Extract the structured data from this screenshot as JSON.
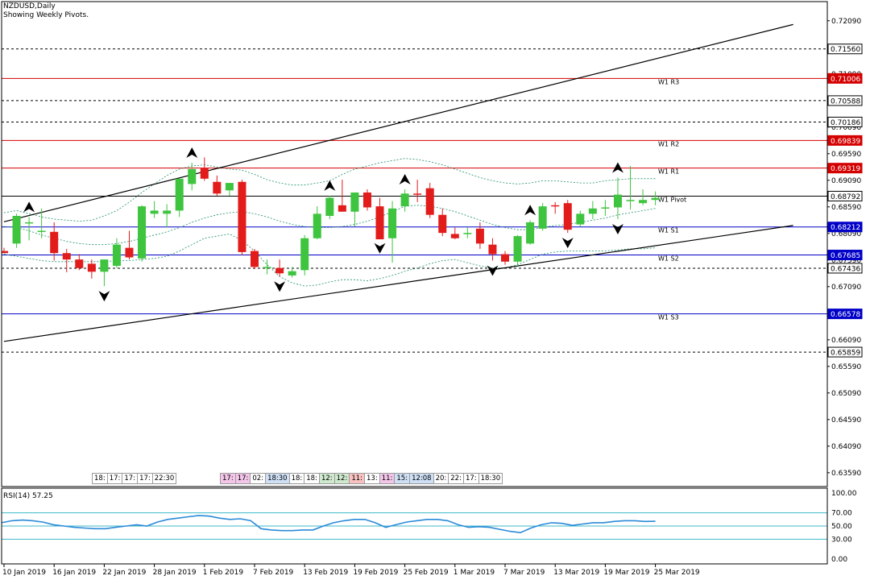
{
  "header": {
    "symbol": "NZDUSD,Daily",
    "subtitle": "Showing Weekly Pivots."
  },
  "rsi": {
    "label": "RSI(14) 57.25",
    "ticks": [
      "100.00",
      "70.00",
      "50.00",
      "30.00",
      "0.00"
    ]
  },
  "time_tags_left": [
    {
      "t": "18:",
      "c": ""
    },
    {
      "t": "17:",
      "c": ""
    },
    {
      "t": "17:",
      "c": ""
    },
    {
      "t": "17:",
      "c": ""
    },
    {
      "t": "22:30",
      "c": ""
    }
  ],
  "time_tags_mid": [
    {
      "t": "17:",
      "c": "p"
    },
    {
      "t": "17:",
      "c": "p"
    },
    {
      "t": "02:",
      "c": ""
    },
    {
      "t": "18:30",
      "c": "b"
    },
    {
      "t": "18:",
      "c": ""
    },
    {
      "t": "18:",
      "c": ""
    },
    {
      "t": "12:",
      "c": "g"
    },
    {
      "t": "12:",
      "c": "g"
    },
    {
      "t": "11:",
      "c": "r"
    },
    {
      "t": "13:",
      "c": ""
    },
    {
      "t": "11:",
      "c": "p"
    },
    {
      "t": "15:",
      "c": "b"
    },
    {
      "t": "12:08",
      "c": "b"
    },
    {
      "t": "20:",
      "c": ""
    },
    {
      "t": "22:",
      "c": ""
    },
    {
      "t": "17:",
      "c": ""
    },
    {
      "t": "18:30",
      "c": ""
    }
  ],
  "colors": {
    "bull": "#3ec43e",
    "bear": "#e21b1b",
    "pivot_red": "#d40000",
    "pivot_blue": "#0000c8",
    "band": "#1f8f6a",
    "rsi": "#2a8ad8",
    "rsi_level": "#3cb9c8"
  },
  "chart_data": {
    "type": "candlestick",
    "title": "NZDUSD,Daily",
    "ylim": [
      0.6333,
      0.7245
    ],
    "y_ticks": [
      "0.72090",
      "0.71590",
      "0.71090",
      "0.70590",
      "0.70090",
      "0.69590",
      "0.69090",
      "0.68590",
      "0.68090",
      "0.67590",
      "0.67090",
      "0.66590",
      "0.66090",
      "0.65590",
      "0.65090",
      "0.64590",
      "0.64090",
      "0.63590"
    ],
    "x_labels": [
      "10 Jan 2019",
      "16 Jan 2019",
      "22 Jan 2019",
      "28 Jan 2019",
      "1 Feb 2019",
      "7 Feb 2019",
      "13 Feb 2019",
      "19 Feb 2019",
      "25 Feb 2019",
      "1 Mar 2019",
      "7 Mar 2019",
      "13 Mar 2019",
      "19 Mar 2019",
      "25 Mar 2019"
    ],
    "x_label_index": [
      0,
      4,
      8,
      12,
      16,
      20,
      24,
      28,
      32,
      36,
      40,
      44,
      48,
      52
    ],
    "candles": [
      {
        "o": 0.6776,
        "h": 0.6782,
        "l": 0.6772,
        "c": 0.6772
      },
      {
        "o": 0.679,
        "h": 0.6846,
        "l": 0.6782,
        "c": 0.6842
      },
      {
        "o": 0.683,
        "h": 0.684,
        "l": 0.6796,
        "c": 0.683
      },
      {
        "o": 0.6812,
        "h": 0.6856,
        "l": 0.68,
        "c": 0.6814
      },
      {
        "o": 0.6812,
        "h": 0.683,
        "l": 0.6758,
        "c": 0.6772
      },
      {
        "o": 0.6772,
        "h": 0.678,
        "l": 0.6736,
        "c": 0.676
      },
      {
        "o": 0.676,
        "h": 0.677,
        "l": 0.674,
        "c": 0.6744
      },
      {
        "o": 0.6752,
        "h": 0.676,
        "l": 0.6724,
        "c": 0.6737
      },
      {
        "o": 0.6737,
        "h": 0.676,
        "l": 0.671,
        "c": 0.676
      },
      {
        "o": 0.6748,
        "h": 0.68,
        "l": 0.6744,
        "c": 0.6788
      },
      {
        "o": 0.6782,
        "h": 0.6814,
        "l": 0.676,
        "c": 0.6764
      },
      {
        "o": 0.6762,
        "h": 0.6862,
        "l": 0.6756,
        "c": 0.686
      },
      {
        "o": 0.6846,
        "h": 0.687,
        "l": 0.6838,
        "c": 0.6852
      },
      {
        "o": 0.6846,
        "h": 0.6864,
        "l": 0.682,
        "c": 0.6852
      },
      {
        "o": 0.6852,
        "h": 0.691,
        "l": 0.684,
        "c": 0.6912
      },
      {
        "o": 0.6902,
        "h": 0.6942,
        "l": 0.689,
        "c": 0.693
      },
      {
        "o": 0.6932,
        "h": 0.6952,
        "l": 0.6908,
        "c": 0.6912
      },
      {
        "o": 0.6906,
        "h": 0.6918,
        "l": 0.688,
        "c": 0.6884
      },
      {
        "o": 0.689,
        "h": 0.6904,
        "l": 0.688,
        "c": 0.6904
      },
      {
        "o": 0.6906,
        "h": 0.691,
        "l": 0.6768,
        "c": 0.6774
      },
      {
        "o": 0.6776,
        "h": 0.678,
        "l": 0.6742,
        "c": 0.6746
      },
      {
        "o": 0.6744,
        "h": 0.676,
        "l": 0.6732,
        "c": 0.6746
      },
      {
        "o": 0.6744,
        "h": 0.676,
        "l": 0.6728,
        "c": 0.6734
      },
      {
        "o": 0.673,
        "h": 0.6746,
        "l": 0.6726,
        "c": 0.6738
      },
      {
        "o": 0.674,
        "h": 0.6806,
        "l": 0.673,
        "c": 0.68
      },
      {
        "o": 0.68,
        "h": 0.686,
        "l": 0.6798,
        "c": 0.6846
      },
      {
        "o": 0.6842,
        "h": 0.688,
        "l": 0.6836,
        "c": 0.6876
      },
      {
        "o": 0.6862,
        "h": 0.691,
        "l": 0.685,
        "c": 0.685
      },
      {
        "o": 0.685,
        "h": 0.6886,
        "l": 0.6822,
        "c": 0.6886
      },
      {
        "o": 0.6886,
        "h": 0.6892,
        "l": 0.6852,
        "c": 0.6858
      },
      {
        "o": 0.686,
        "h": 0.6876,
        "l": 0.68,
        "c": 0.6798
      },
      {
        "o": 0.68,
        "h": 0.687,
        "l": 0.6754,
        "c": 0.6856
      },
      {
        "o": 0.686,
        "h": 0.6892,
        "l": 0.685,
        "c": 0.6884
      },
      {
        "o": 0.6884,
        "h": 0.691,
        "l": 0.6868,
        "c": 0.6882
      },
      {
        "o": 0.6894,
        "h": 0.6904,
        "l": 0.6838,
        "c": 0.6844
      },
      {
        "o": 0.6844,
        "h": 0.6856,
        "l": 0.6804,
        "c": 0.681
      },
      {
        "o": 0.6808,
        "h": 0.682,
        "l": 0.6798,
        "c": 0.68
      },
      {
        "o": 0.6808,
        "h": 0.682,
        "l": 0.68,
        "c": 0.681
      },
      {
        "o": 0.6818,
        "h": 0.683,
        "l": 0.678,
        "c": 0.679
      },
      {
        "o": 0.6788,
        "h": 0.68,
        "l": 0.6758,
        "c": 0.677
      },
      {
        "o": 0.677,
        "h": 0.6776,
        "l": 0.675,
        "c": 0.6756
      },
      {
        "o": 0.6756,
        "h": 0.6806,
        "l": 0.6748,
        "c": 0.6804
      },
      {
        "o": 0.679,
        "h": 0.6834,
        "l": 0.6788,
        "c": 0.683
      },
      {
        "o": 0.6818,
        "h": 0.6866,
        "l": 0.6814,
        "c": 0.686
      },
      {
        "o": 0.6862,
        "h": 0.6868,
        "l": 0.6846,
        "c": 0.686
      },
      {
        "o": 0.6866,
        "h": 0.6872,
        "l": 0.681,
        "c": 0.6816
      },
      {
        "o": 0.6826,
        "h": 0.6852,
        "l": 0.6822,
        "c": 0.6846
      },
      {
        "o": 0.6846,
        "h": 0.687,
        "l": 0.6836,
        "c": 0.6856
      },
      {
        "o": 0.6856,
        "h": 0.6872,
        "l": 0.6842,
        "c": 0.6858
      },
      {
        "o": 0.6858,
        "h": 0.6914,
        "l": 0.6836,
        "c": 0.6882
      },
      {
        "o": 0.6872,
        "h": 0.6936,
        "l": 0.6854,
        "c": 0.6872
      },
      {
        "o": 0.6866,
        "h": 0.6892,
        "l": 0.6862,
        "c": 0.6872
      },
      {
        "o": 0.6872,
        "h": 0.6888,
        "l": 0.6862,
        "c": 0.6876
      }
    ],
    "pivot_levels": [
      {
        "label": "W1 R3",
        "value": 0.71006,
        "color": "red"
      },
      {
        "label": "W1 R2",
        "value": 0.69839,
        "color": "red"
      },
      {
        "label": "W1 R1",
        "value": 0.69319,
        "color": "red"
      },
      {
        "label": "W1 Pivot",
        "value": 0.68792,
        "color": "black"
      },
      {
        "label": "W1 S1",
        "value": 0.68212,
        "color": "blue"
      },
      {
        "label": "W1 S2",
        "value": 0.67685,
        "color": "blue"
      },
      {
        "label": "W1 S3",
        "value": 0.66578,
        "color": "blue"
      }
    ],
    "dotted_levels": [
      0.7156,
      0.70588,
      0.70186,
      0.67436,
      0.65859
    ],
    "price_tags": [
      {
        "text": "0.71560",
        "value": 0.7156,
        "style": "black"
      },
      {
        "text": "0.71006",
        "value": 0.71006,
        "style": "red"
      },
      {
        "text": "0.70588",
        "value": 0.70588,
        "style": "black"
      },
      {
        "text": "0.70186",
        "value": 0.70186,
        "style": "black"
      },
      {
        "text": "0.69839",
        "value": 0.69839,
        "style": "red"
      },
      {
        "text": "0.69319",
        "value": 0.69319,
        "style": "red"
      },
      {
        "text": "0.68792",
        "value": 0.68792,
        "style": "black"
      },
      {
        "text": "0.68212",
        "value": 0.68212,
        "style": "blue"
      },
      {
        "text": "0.67685",
        "value": 0.67685,
        "style": "blue"
      },
      {
        "text": "0.67436",
        "value": 0.67436,
        "style": "black"
      },
      {
        "text": "0.66578",
        "value": 0.66578,
        "style": "blue"
      },
      {
        "text": "0.65859",
        "value": 0.65859,
        "style": "black"
      }
    ],
    "trendlines": [
      {
        "i1": 0,
        "p1": 0.6831,
        "i2": 63,
        "p2": 0.7202
      },
      {
        "i1": 0,
        "p1": 0.6606,
        "i2": 63,
        "p2": 0.6824
      }
    ],
    "fractals_up": [
      2,
      15,
      26,
      32,
      42,
      49
    ],
    "fractals_down": [
      8,
      22,
      30,
      39,
      45,
      49
    ],
    "envelope_upper": [
      0.6848,
      0.6852,
      0.6846,
      0.684,
      0.6836,
      0.6834,
      0.6832,
      0.6834,
      0.6842,
      0.6852,
      0.6868,
      0.6886,
      0.6902,
      0.6918,
      0.693,
      0.6936,
      0.6938,
      0.6934,
      0.693,
      0.6928,
      0.692,
      0.691,
      0.6904,
      0.69,
      0.69,
      0.6904,
      0.6908,
      0.692,
      0.693,
      0.6936,
      0.6942,
      0.6946,
      0.695,
      0.6948,
      0.6944,
      0.6938,
      0.693,
      0.6922,
      0.6914,
      0.6908,
      0.6904,
      0.6902,
      0.6904,
      0.6908,
      0.6908,
      0.6906,
      0.6904,
      0.6904,
      0.6908,
      0.691,
      0.6912,
      0.6912,
      0.6912
    ],
    "envelope_mid": [
      0.6822,
      0.682,
      0.6814,
      0.6806,
      0.68,
      0.6794,
      0.679,
      0.6788,
      0.6788,
      0.679,
      0.6794,
      0.68,
      0.6806,
      0.6812,
      0.682,
      0.683,
      0.6838,
      0.6844,
      0.6848,
      0.685,
      0.6846,
      0.684,
      0.6832,
      0.6826,
      0.6822,
      0.682,
      0.682,
      0.6822,
      0.6826,
      0.6832,
      0.684,
      0.685,
      0.686,
      0.6862,
      0.686,
      0.6856,
      0.685,
      0.6842,
      0.6834,
      0.6826,
      0.682,
      0.6816,
      0.6816,
      0.682,
      0.6824,
      0.6826,
      0.683,
      0.6834,
      0.6838,
      0.6844,
      0.6848,
      0.6852,
      0.6856
    ],
    "envelope_lower": [
      0.677,
      0.6766,
      0.6762,
      0.6758,
      0.6756,
      0.6756,
      0.6756,
      0.6756,
      0.6756,
      0.6758,
      0.6758,
      0.676,
      0.6762,
      0.6766,
      0.6776,
      0.6788,
      0.68,
      0.6804,
      0.6808,
      0.6796,
      0.6776,
      0.675,
      0.6728,
      0.6716,
      0.671,
      0.6712,
      0.6718,
      0.6722,
      0.6722,
      0.672,
      0.6724,
      0.673,
      0.6738,
      0.6744,
      0.6752,
      0.6758,
      0.676,
      0.6754,
      0.6748,
      0.6744,
      0.6744,
      0.675,
      0.676,
      0.677,
      0.6774,
      0.6776,
      0.6776,
      0.6776,
      0.6776,
      0.6778,
      0.678,
      0.678,
      0.6782
    ],
    "rsi_ylim": [
      0,
      100
    ],
    "rsi_levels": [
      70,
      50,
      30
    ],
    "rsi_values": [
      55,
      58,
      59,
      58,
      56,
      52,
      50,
      48,
      47,
      46,
      46,
      48,
      50,
      52,
      50,
      56,
      60,
      62,
      64,
      66,
      65,
      62,
      60,
      61,
      58,
      46,
      44,
      43,
      43,
      44,
      44,
      50,
      55,
      58,
      60,
      60,
      55,
      48,
      52,
      56,
      58,
      60,
      60,
      58,
      52,
      48,
      49,
      48,
      45,
      42,
      40,
      47,
      52,
      55,
      54,
      51,
      53,
      55,
      55,
      57,
      58,
      58,
      57,
      57.25
    ]
  }
}
